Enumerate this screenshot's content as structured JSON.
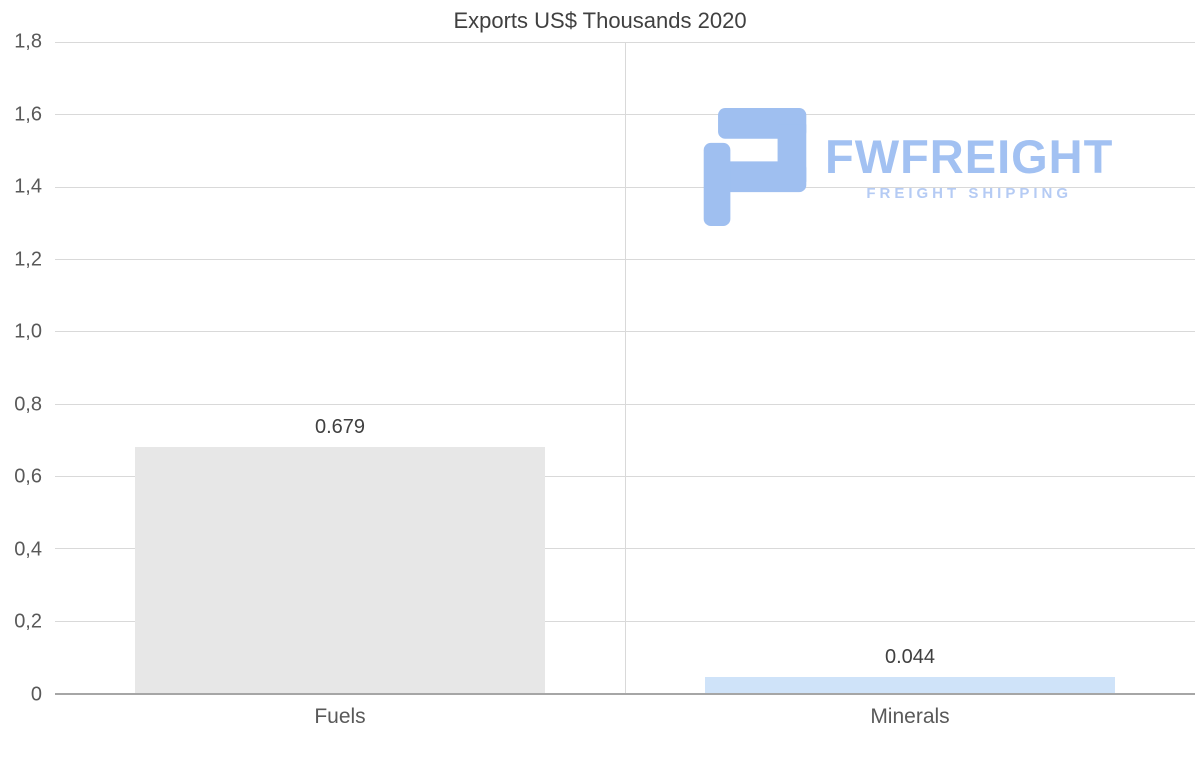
{
  "chart_data": {
    "type": "bar",
    "title": "Exports US$ Thousands 2020",
    "categories": [
      "Fuels",
      "Minerals"
    ],
    "values": [
      0.679,
      0.044
    ],
    "value_labels": [
      "0.679",
      "0.044"
    ],
    "bar_colors": [
      "#e7e7e7",
      "#cfe3f9"
    ],
    "xlabel": "",
    "ylabel": "",
    "ylim": [
      0,
      1.8
    ],
    "yticks": [
      0,
      0.2,
      0.4,
      0.6,
      0.8,
      1.0,
      1.2,
      1.4,
      1.6,
      1.8
    ],
    "ytick_labels": [
      "0",
      "0,2",
      "0,4",
      "0,6",
      "0,8",
      "1,0",
      "1,2",
      "1,4",
      "1,6",
      "1,8"
    ],
    "grid": "horizontal",
    "legend": "none"
  },
  "logo": {
    "title": "FWFREIGHT",
    "subtitle": "FREIGHT SHIPPING",
    "color": "#a2c1f2"
  },
  "colors": {
    "title_text": "#404040",
    "axis_text": "#595959",
    "gridline": "#d9d9d9",
    "axis_line": "#a6a6a6"
  }
}
